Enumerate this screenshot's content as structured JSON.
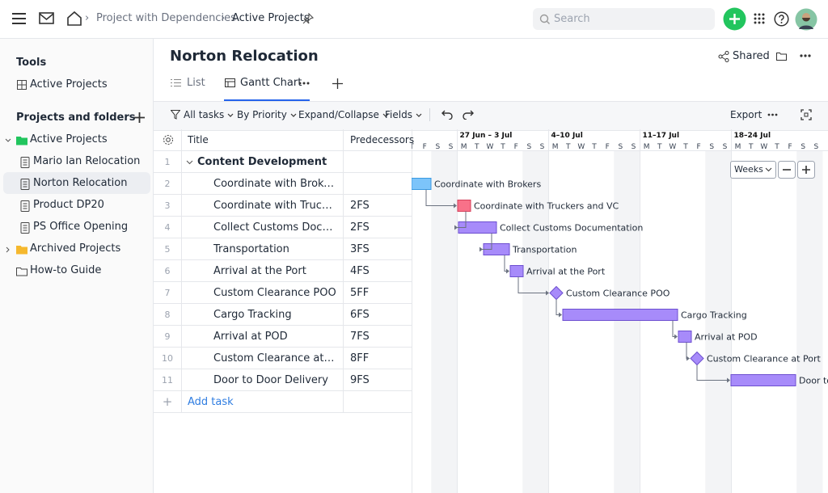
{
  "topbar": {
    "breadcrumb": [
      "Project with Dependencies",
      "Active Projects"
    ],
    "search": "Search"
  },
  "sidebar": {
    "tools_heading": "Tools",
    "tools": [
      "Active Projects"
    ],
    "projects_heading": "Projects and folders",
    "tree": [
      "Active Projects",
      "Mario Ian Relocation",
      "Norton Relocation",
      "Product DP20",
      "PS Office Opening",
      "Archived Projects",
      "How-to Guide"
    ]
  },
  "project": {
    "title": "Norton Relocation",
    "shared": "Shared",
    "tabs": [
      "List",
      "Gantt Chart"
    ]
  },
  "toolbar": {
    "filters": [
      "All tasks",
      "By Priority",
      "Expand/Collapse",
      "Fields"
    ],
    "export": "Export"
  },
  "table": {
    "columns": [
      "Title",
      "Predecessors"
    ],
    "rows": [
      {
        "num": 1,
        "title": "Content Development"
      },
      {
        "num": 2,
        "title": "Coordinate with Brokers"
      },
      {
        "num": 3,
        "title": "Coordinate with Truckers and VC",
        "pred": "2FS"
      },
      {
        "num": 4,
        "title": "Collect Customs Documentation",
        "pred": "2FS"
      },
      {
        "num": 5,
        "title": "Transportation",
        "pred": "3FS"
      },
      {
        "num": 6,
        "title": "Arrival at the Port",
        "pred": "4FS"
      },
      {
        "num": 7,
        "title": "Custom Clearance POO",
        "pred": "5FF"
      },
      {
        "num": 8,
        "title": "Cargo Tracking",
        "pred": "6FS"
      },
      {
        "num": 9,
        "title": "Arrival at POD",
        "pred": "7FS"
      },
      {
        "num": 10,
        "title": "Custom Clearance at Port",
        "pred": "8FF"
      },
      {
        "num": 11,
        "title": "Door to Door Delivery",
        "pred": "9FS"
      }
    ]
  },
  "add_task": "Add task",
  "timeline": {
    "weeks": [
      "27 Jun – 3 Jul",
      "4–10 Jul",
      "11–17 Jul",
      "18–24 Jul"
    ],
    "days": [
      "T",
      "F",
      "S",
      "S",
      "M",
      "T",
      "W",
      "T",
      "F",
      "S",
      "S",
      "M",
      "T",
      "W",
      "T",
      "F",
      "S",
      "S",
      "M",
      "T",
      "W",
      "T",
      "F",
      "S",
      "S",
      "M",
      "T",
      "W",
      "T",
      "F",
      "S",
      "S"
    ],
    "zoom": "Weeks"
  }
}
